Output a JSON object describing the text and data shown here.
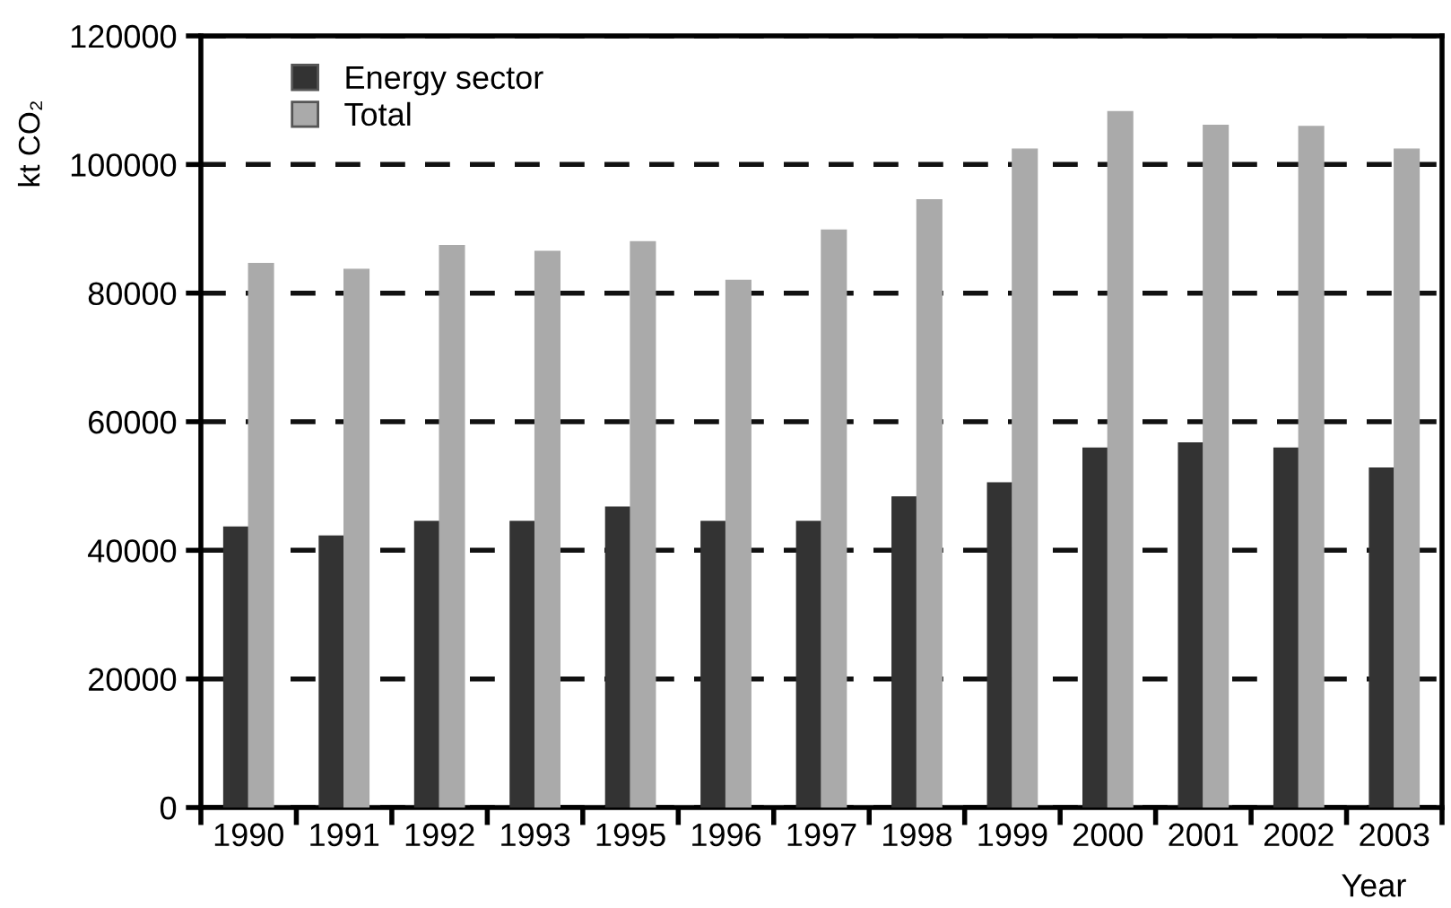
{
  "chart_data": {
    "type": "bar",
    "xlabel": "Year",
    "ylabel": "kt CO₂",
    "categories": [
      "1990",
      "1991",
      "1992",
      "1993",
      "1995",
      "1996",
      "1997",
      "1998",
      "1999",
      "2000",
      "2001",
      "2002",
      "2003"
    ],
    "series": [
      {
        "name": "Energy sector",
        "color": "#333333",
        "values": [
          43600,
          42200,
          44500,
          44500,
          46700,
          44500,
          44500,
          48300,
          50500,
          55900,
          56700,
          55900,
          52800
        ]
      },
      {
        "name": "Total",
        "color": "#aaaaaa",
        "values": [
          84600,
          83700,
          87400,
          86500,
          88000,
          82000,
          89800,
          94500,
          102400,
          108200,
          106100,
          105900,
          102400
        ]
      }
    ],
    "ylim": [
      0,
      120000
    ],
    "yticks": [
      0,
      20000,
      40000,
      60000,
      80000,
      100000,
      120000
    ],
    "grid": "y",
    "line_style": "dashed",
    "legend": "top left"
  }
}
